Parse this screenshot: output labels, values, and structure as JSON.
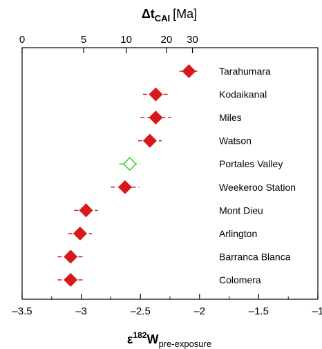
{
  "chart_data": {
    "type": "scatter",
    "top_axis": {
      "title_symbol": "Δt",
      "title_subscript": "CAI",
      "title_unit": "[Ma]",
      "ticks": [
        {
          "label": "0",
          "epsilon": -3.5
        },
        {
          "label": "5",
          "epsilon": -2.98
        },
        {
          "label": "10",
          "epsilon": -2.62
        },
        {
          "label": "20",
          "epsilon": -2.28
        },
        {
          "label": "30",
          "epsilon": -2.06
        }
      ]
    },
    "bottom_axis": {
      "title_symbol": "ε",
      "title_superscript": "182",
      "title_main": "W",
      "title_subscript": "pre-exposure",
      "xlim": [
        -3.5,
        -1
      ],
      "ticks": [
        {
          "label": "–3.5",
          "value": -3.5
        },
        {
          "label": "–3",
          "value": -3
        },
        {
          "label": "–2.5",
          "value": -2.5
        },
        {
          "label": "–2",
          "value": -2
        },
        {
          "label": "–1.5",
          "value": -1.5
        },
        {
          "label": "–1",
          "value": -1
        }
      ]
    },
    "points": [
      {
        "name": "Tarahumara",
        "value": -2.09,
        "error": 0.08,
        "filled": true
      },
      {
        "name": "Kodaikanal",
        "value": -2.37,
        "error": 0.11,
        "filled": true
      },
      {
        "name": "Miles",
        "value": -2.37,
        "error": 0.13,
        "filled": true
      },
      {
        "name": "Watson",
        "value": -2.42,
        "error": 0.1,
        "filled": true
      },
      {
        "name": "Portales Valley",
        "value": -2.59,
        "error": 0.09,
        "filled": false
      },
      {
        "name": "Weekeroo Station",
        "value": -2.63,
        "error": 0.12,
        "filled": true
      },
      {
        "name": "Mont Dieu",
        "value": -2.96,
        "error": 0.1,
        "filled": true
      },
      {
        "name": "Arlington",
        "value": -3.01,
        "error": 0.1,
        "filled": true
      },
      {
        "name": "Barranca Blanca",
        "value": -3.09,
        "error": 0.11,
        "filled": true
      },
      {
        "name": "Colomera",
        "value": -3.09,
        "error": 0.11,
        "filled": true
      }
    ],
    "colors": {
      "filled": "#d7191c",
      "open": "#2ecc20",
      "axis": "#000000"
    },
    "grid": false
  }
}
